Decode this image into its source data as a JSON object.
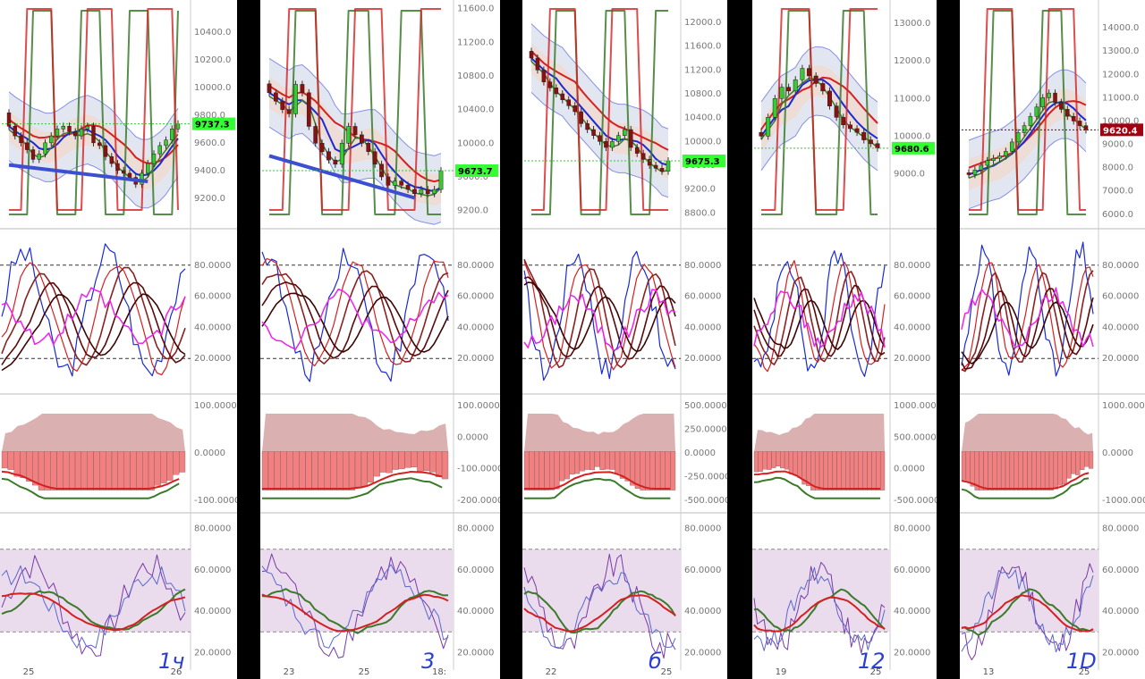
{
  "colors": {
    "ma_red": "#d42020",
    "ma_blue": "#1a2bd6",
    "ma_green": "#3a7a2a",
    "up_candle": "#33cc33",
    "down_candle": "#8b1010",
    "band_fill": "#dfe3f0",
    "band_inner": "#f1d9d0",
    "rsi_zone": "#eadcec",
    "last_green": "#33ff33",
    "last_red": "#a00010",
    "trendline": "#3b4fd0",
    "stoch_pink": "#ee22ee",
    "osc_dark": "#5a0a0a"
  },
  "columns": [
    {
      "timeframe_label": "1ч",
      "last_price": "9737.3",
      "last_color": "green",
      "price_ticks": [
        "10400.0",
        "10200.0",
        "10000.0",
        "9800.0",
        "9600.0",
        "9400.0",
        "9200.0"
      ],
      "stoch_ticks": [
        "80.0000",
        "60.0000",
        "40.0000",
        "20.0000"
      ],
      "macd_ticks": [
        "100.0000",
        "0.0000",
        "-100.0000"
      ],
      "rsi_ticks": [
        "80.0000",
        "60.0000",
        "40.0000",
        "20.0000"
      ],
      "x_ticks": [
        "25",
        "26"
      ],
      "chart_data": {
        "type": "line",
        "price_ylim": [
          9050,
          10600
        ],
        "close": [
          9720,
          9650,
          9600,
          9550,
          9480,
          9520,
          9600,
          9650,
          9700,
          9720,
          9680,
          9650,
          9700,
          9720,
          9600,
          9580,
          9500,
          9450,
          9400,
          9380,
          9350,
          9300,
          9380,
          9450,
          9520,
          9580,
          9620,
          9700,
          9737
        ],
        "trendline": [
          [
            0,
            9440
          ],
          [
            1,
            9320
          ]
        ]
      }
    },
    {
      "timeframe_label": "3",
      "last_price": "9673.7",
      "last_color": "green",
      "price_ticks": [
        "11600.0",
        "11200.0",
        "10800.0",
        "10400.0",
        "10000.0",
        "9600.0",
        "9200.0"
      ],
      "stoch_ticks": [
        "80.0000",
        "60.0000",
        "40.0000",
        "20.0000"
      ],
      "macd_ticks": [
        "100.0000",
        "0.0000",
        "-100.0000",
        "-200.0000"
      ],
      "rsi_ticks": [
        "80.0000",
        "60.0000",
        "40.0000",
        "20.0000"
      ],
      "x_ticks": [
        "23",
        "25",
        "18:"
      ],
      "chart_data": {
        "type": "line",
        "price_ylim": [
          9100,
          11650
        ],
        "close": [
          10600,
          10500,
          10400,
          10350,
          10700,
          10600,
          10200,
          10000,
          9900,
          9800,
          9750,
          10000,
          10200,
          10100,
          10000,
          9900,
          9750,
          9600,
          9500,
          9550,
          9500,
          9450,
          9400,
          9450,
          9400,
          9450,
          9673
        ],
        "trendline": [
          [
            0,
            9850
          ],
          [
            1,
            9350
          ]
        ]
      }
    },
    {
      "timeframe_label": "б",
      "last_price": "9675.3",
      "last_color": "green",
      "price_ticks": [
        "12000.0",
        "11600.0",
        "11200.0",
        "10800.0",
        "10400.0",
        "10000.0",
        "9600.0",
        "9200.0",
        "8800.0"
      ],
      "stoch_ticks": [
        "80.0000",
        "60.0000",
        "40.0000",
        "20.0000"
      ],
      "macd_ticks": [
        "500.0000",
        "250.0000",
        "0.0000",
        "-250.0000",
        "-500.0000"
      ],
      "rsi_ticks": [
        "80.0000",
        "60.0000",
        "40.0000",
        "20.0000"
      ],
      "x_ticks": [
        "22",
        "25"
      ],
      "chart_data": {
        "type": "line",
        "price_ylim": [
          8700,
          12300
        ],
        "close": [
          11400,
          11200,
          11000,
          10900,
          10800,
          10700,
          10600,
          10500,
          10300,
          10200,
          10100,
          10000,
          9900,
          10000,
          10100,
          10200,
          9900,
          9800,
          9700,
          9600,
          9550,
          9500,
          9675
        ],
        "trendline": []
      }
    },
    {
      "timeframe_label": "12",
      "last_price": "9680.6",
      "last_color": "green",
      "price_ticks": [
        "13000.0",
        "12000.0",
        "11000.0",
        "10000.0",
        "9000.0"
      ],
      "stoch_ticks": [
        "80.0000",
        "60.0000",
        "40.0000",
        "20.0000"
      ],
      "macd_ticks": [
        "1000.0000",
        "500.0000",
        "0.0000",
        "-500.0000"
      ],
      "rsi_ticks": [
        "80.0000",
        "60.0000",
        "40.0000",
        "20.0000"
      ],
      "x_ticks": [
        "19",
        "25"
      ],
      "chart_data": {
        "type": "line",
        "price_ylim": [
          7800,
          13500
        ],
        "close": [
          10000,
          10500,
          11000,
          11300,
          11200,
          11500,
          11800,
          11600,
          11400,
          11200,
          10800,
          10500,
          10300,
          10200,
          10100,
          9900,
          9800,
          9680
        ],
        "trendline": []
      }
    },
    {
      "timeframe_label": "1D",
      "last_price": "9620.4",
      "last_color": "red",
      "price_ticks": [
        "14000.0",
        "13000.0",
        "12000.0",
        "11000.0",
        "10000.0",
        "9000.0",
        "8000.0",
        "7000.0",
        "6000.0"
      ],
      "stoch_ticks": [
        "80.0000",
        "60.0000",
        "40.0000",
        "20.0000"
      ],
      "macd_ticks": [
        "1000.0000",
        "0.0000",
        "-1000.0000"
      ],
      "rsi_ticks": [
        "80.0000",
        "60.0000",
        "40.0000",
        "20.0000"
      ],
      "x_ticks": [
        "13",
        "25"
      ],
      "chart_data": {
        "type": "line",
        "price_ylim": [
          5800,
          15000
        ],
        "close": [
          7700,
          7900,
          8100,
          8300,
          8400,
          8500,
          8700,
          9100,
          9500,
          9800,
          10200,
          10600,
          11000,
          11200,
          10800,
          10500,
          10200,
          10000,
          9800,
          9620
        ],
        "trendline": []
      }
    }
  ]
}
